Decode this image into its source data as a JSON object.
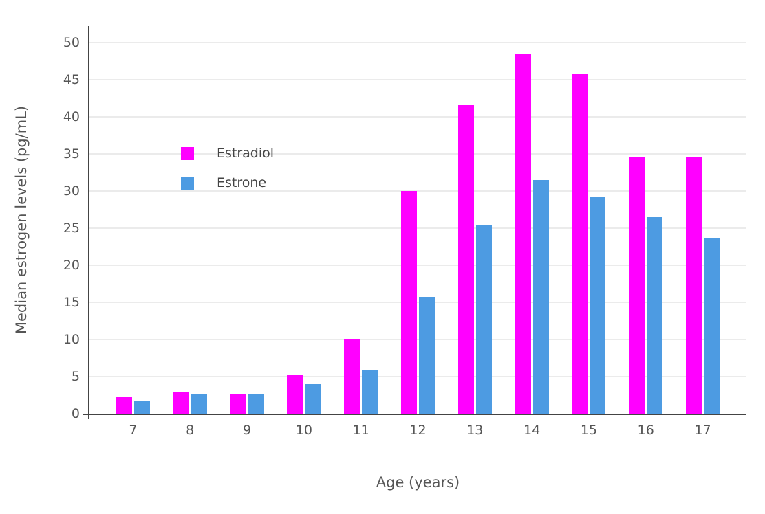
{
  "chart_data": {
    "type": "bar",
    "xlabel": "Age (years)",
    "ylabel": "Median estrogen levels (pg/mL)",
    "categories": [
      "7",
      "8",
      "9",
      "10",
      "11",
      "12",
      "13",
      "14",
      "15",
      "16",
      "17"
    ],
    "series": [
      {
        "name": "Estradiol",
        "color": "#FF00FF",
        "values": [
          2.2,
          3.0,
          2.6,
          5.3,
          10.1,
          30.0,
          41.6,
          48.5,
          45.8,
          34.5,
          34.6
        ]
      },
      {
        "name": "Estrone",
        "color": "#4D9BE2",
        "values": [
          1.7,
          2.7,
          2.6,
          4.0,
          5.8,
          15.7,
          25.5,
          31.5,
          29.3,
          26.5,
          23.6
        ]
      }
    ],
    "ylim": [
      0,
      50
    ],
    "yticks": [
      0,
      5,
      10,
      15,
      20,
      25,
      30,
      35,
      40,
      45,
      50
    ],
    "grid": true,
    "legend_position": "inside-top-left"
  },
  "colors": {
    "background": "#ffffff",
    "axis_line": "#444444",
    "gridline": "#ebebeb",
    "text": "#555555"
  }
}
